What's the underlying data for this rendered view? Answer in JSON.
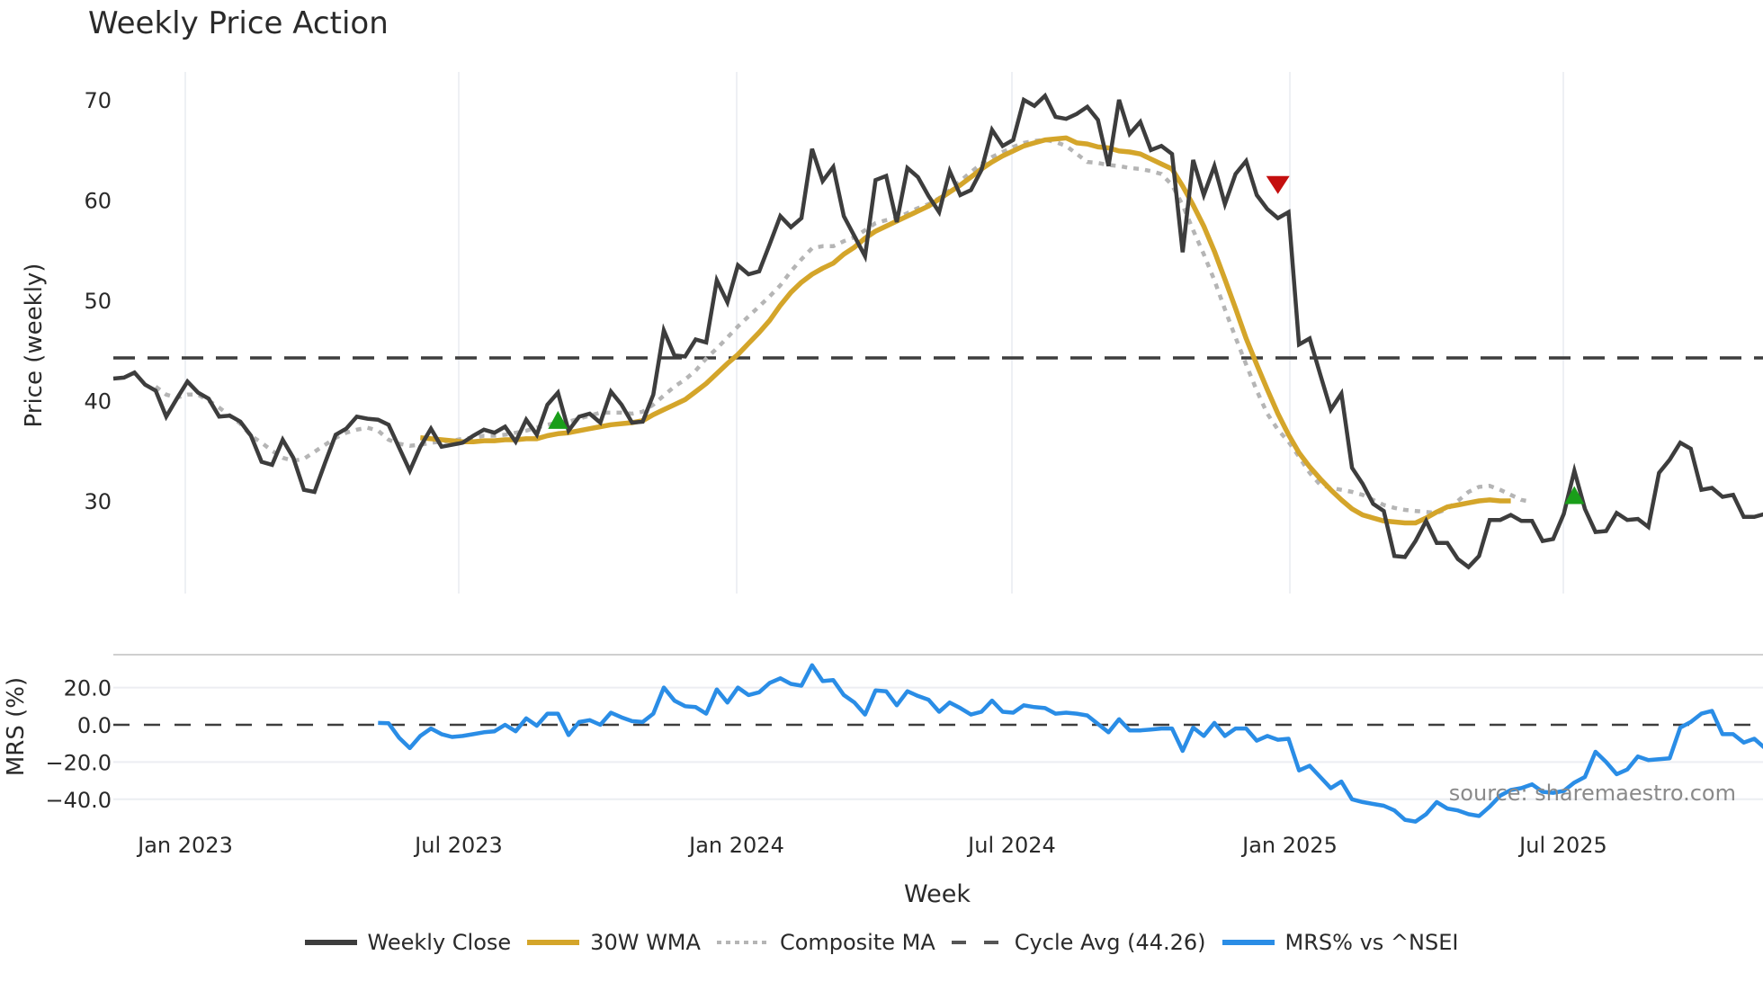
{
  "title": "Weekly Price Action",
  "source": "source: sharemaestro.com",
  "colors": {
    "weekly_close": "#3d3d3d",
    "wma30": "#d4a52a",
    "composite_ma": "#b5b5b5",
    "cycle_avg": "#3d3d3d",
    "mrs": "#2a8de6",
    "buy_signal": "#1a9e1a",
    "sell_signal": "#c40f0f"
  },
  "legend": [
    {
      "key": "weekly_close",
      "label": "Weekly Close",
      "style": "solid"
    },
    {
      "key": "wma30",
      "label": "30W WMA",
      "style": "solid"
    },
    {
      "key": "composite_ma",
      "label": "Composite MA",
      "style": "dotted"
    },
    {
      "key": "cycle_avg",
      "label": "Cycle Avg (44.26)",
      "style": "dashed"
    },
    {
      "key": "mrs",
      "label": "MRS% vs ^NSEI",
      "style": "solid"
    }
  ],
  "chart_data": [
    {
      "type": "line",
      "title": "Weekly Price Action",
      "xlabel": "Week",
      "ylabel": "Price (weekly)",
      "ylim": [
        20.5,
        73.5
      ],
      "yticks": [
        30,
        40,
        50,
        60,
        70
      ],
      "xticks": [
        "Jan 2023",
        "Jul 2023",
        "Jan 2024",
        "Jul 2024",
        "Jan 2025",
        "Jul 2025"
      ],
      "grid": true,
      "x_start": "2022-11-14",
      "x_interval": "weekly",
      "cycle_avg": 44.26,
      "series": [
        {
          "name": "Weekly Close",
          "key": "weekly_close",
          "values": [
            42.2,
            42.3,
            42.8,
            41.6,
            41.0,
            38.4,
            40.2,
            41.9,
            40.8,
            40.2,
            38.4,
            38.5,
            37.9,
            36.5,
            33.9,
            33.6,
            36.1,
            34.3,
            31.1,
            30.9,
            33.8,
            36.6,
            37.2,
            38.4,
            38.2,
            38.1,
            37.6,
            35.3,
            33.0,
            35.4,
            37.2,
            35.4,
            35.6,
            35.8,
            36.5,
            37.1,
            36.8,
            37.4,
            35.9,
            38.1,
            36.6,
            39.6,
            40.8,
            37.0,
            38.4,
            38.7,
            37.8,
            40.9,
            39.6,
            37.8,
            37.9,
            40.6,
            47.0,
            44.5,
            44.4,
            46.1,
            45.8,
            52.0,
            49.8,
            53.5,
            52.6,
            52.9,
            55.6,
            58.4,
            57.3,
            58.2,
            65.1,
            61.9,
            63.3,
            58.4,
            56.4,
            54.4,
            62.0,
            62.4,
            57.8,
            63.2,
            62.3,
            60.4,
            58.8,
            62.9,
            60.5,
            61.0,
            63.0,
            67.0,
            65.4,
            66.0,
            70.0,
            69.4,
            70.4,
            68.3,
            68.1,
            68.6,
            69.3,
            68.0,
            63.4,
            70.0,
            66.6,
            67.8,
            65.0,
            65.4,
            64.6,
            54.8,
            64.0,
            60.5,
            63.4,
            59.6,
            62.6,
            63.9,
            60.5,
            59.1,
            58.2,
            58.8,
            45.6,
            46.2,
            42.6,
            39.1,
            40.7,
            33.3,
            31.7,
            29.7,
            29.0,
            24.5,
            24.4,
            26.0,
            28.0,
            25.8,
            25.8,
            24.2,
            23.4,
            24.5,
            28.1,
            28.1,
            28.6,
            28.0,
            28.0,
            26.0,
            26.2,
            28.7,
            33.0,
            29.2,
            26.9,
            27.0,
            28.8,
            28.1,
            28.2,
            27.4,
            32.8,
            34.1,
            35.8,
            35.2,
            31.1,
            31.3,
            30.4,
            30.6,
            28.4,
            28.4,
            28.7
          ]
        },
        {
          "name": "30W WMA",
          "key": "wma30",
          "start_index": 29,
          "values": [
            36.3,
            36.2,
            36.1,
            36.0,
            35.9,
            35.9,
            36.0,
            36.0,
            36.1,
            36.1,
            36.2,
            36.2,
            36.5,
            36.7,
            36.8,
            37.0,
            37.2,
            37.4,
            37.6,
            37.7,
            37.8,
            38.0,
            38.6,
            39.1,
            39.6,
            40.1,
            40.9,
            41.7,
            42.7,
            43.7,
            44.6,
            45.7,
            46.8,
            48.0,
            49.5,
            50.8,
            51.8,
            52.6,
            53.2,
            53.7,
            54.6,
            55.3,
            56.2,
            56.9,
            57.4,
            57.9,
            58.4,
            58.9,
            59.4,
            60.1,
            60.8,
            61.5,
            62.3,
            63.1,
            63.8,
            64.4,
            64.9,
            65.4,
            65.7,
            66.0,
            66.1,
            66.2,
            65.7,
            65.6,
            65.3,
            65.2,
            64.9,
            64.8,
            64.6,
            64.1,
            63.6,
            63.1,
            61.4,
            59.5,
            57.4,
            54.9,
            52.1,
            49.2,
            46.2,
            43.6,
            41.1,
            38.7,
            36.6,
            34.8,
            33.4,
            32.2,
            31.1,
            30.1,
            29.2,
            28.6,
            28.3,
            28.0,
            27.9,
            27.8,
            27.8,
            28.3,
            28.9,
            29.4,
            29.6,
            29.8,
            30.0,
            30.1,
            30.0,
            30.0
          ]
        },
        {
          "name": "Composite MA",
          "key": "composite_ma",
          "start_index": 4,
          "values": [
            41.4,
            40.6,
            40.3,
            40.6,
            40.6,
            40.0,
            39.3,
            38.5,
            37.7,
            36.5,
            35.8,
            35.0,
            34.3,
            34.0,
            34.2,
            34.9,
            35.6,
            36.3,
            36.8,
            37.1,
            37.3,
            37.0,
            36.1,
            35.7,
            35.5,
            35.6,
            35.8,
            35.9,
            36.0,
            36.2,
            36.3,
            36.5,
            36.5,
            36.6,
            36.8,
            37.0,
            37.3,
            37.6,
            37.8,
            37.9,
            38.2,
            38.5,
            38.8,
            38.8,
            38.8,
            38.7,
            38.9,
            39.6,
            40.5,
            41.4,
            42.1,
            43.0,
            44.2,
            45.2,
            46.3,
            47.4,
            48.4,
            49.4,
            50.4,
            51.5,
            52.9,
            54.1,
            55.2,
            55.4,
            55.4,
            55.9,
            56.3,
            57.0,
            57.7,
            58.0,
            58.2,
            58.7,
            59.2,
            59.6,
            60.2,
            61.0,
            61.9,
            62.8,
            63.6,
            64.3,
            64.8,
            65.3,
            65.7,
            65.9,
            66.0,
            65.8,
            65.4,
            64.6,
            63.8,
            63.7,
            63.5,
            63.4,
            63.2,
            63.1,
            62.9,
            62.6,
            61.5,
            59.5,
            57.0,
            54.6,
            52.0,
            49.1,
            46.3,
            43.6,
            41.0,
            38.7,
            37.1,
            35.9,
            34.4,
            32.8,
            31.6,
            31.3,
            31.1,
            30.9,
            30.6,
            30.1,
            29.6,
            29.3,
            29.1,
            29.0,
            28.9,
            28.8,
            29.2,
            30.0,
            30.9,
            31.4,
            31.5,
            31.1,
            30.6,
            30.1,
            29.9
          ]
        }
      ],
      "signals": [
        {
          "type": "buy",
          "index": 42,
          "value": 37.9
        },
        {
          "type": "sell",
          "index": 110,
          "value": 61.5
        },
        {
          "type": "buy",
          "index": 138,
          "value": 30.4
        }
      ]
    },
    {
      "type": "line",
      "xlabel": "Week",
      "ylabel": "MRS (%)",
      "ylim": [
        -51,
        42
      ],
      "yticks": [
        20.0,
        0.0,
        -20.0,
        -40.0
      ],
      "ytick_labels": [
        "20.0",
        "0.0",
        "−20.0",
        "−40.0"
      ],
      "zero_line": 0,
      "series": [
        {
          "name": "MRS% vs ^NSEI",
          "key": "mrs",
          "start_index": 25,
          "values": [
            1.0,
            0.8,
            -7.0,
            -12.5,
            -6.0,
            -2.0,
            -5.0,
            -6.5,
            -6.0,
            -5.0,
            -4.0,
            -3.5,
            0.0,
            -3.5,
            3.5,
            -0.5,
            6.0,
            6.0,
            -5.5,
            1.5,
            2.5,
            0.0,
            6.5,
            4.0,
            2.0,
            1.5,
            6.0,
            20.0,
            13.0,
            10.0,
            9.5,
            6.0,
            19.0,
            12.0,
            20.0,
            16.0,
            17.5,
            22.5,
            25.0,
            22.0,
            21.0,
            32.0,
            23.5,
            24.0,
            16.0,
            12.0,
            5.5,
            18.5,
            18.0,
            10.5,
            18.0,
            15.5,
            13.5,
            7.0,
            12.0,
            9.0,
            5.5,
            7.0,
            13.0,
            7.0,
            6.5,
            10.5,
            9.5,
            9.0,
            6.0,
            6.5,
            6.0,
            5.0,
            0.5,
            -4.0,
            3.0,
            -3.0,
            -3.0,
            -2.5,
            -2.0,
            -2.0,
            -14.0,
            -1.5,
            -6.0,
            1.0,
            -6.0,
            -2.0,
            -2.0,
            -8.5,
            -6.0,
            -8.0,
            -7.5,
            -24.5,
            -22.0,
            -28.0,
            -34.0,
            -30.5,
            -40.0,
            -41.5,
            -42.5,
            -43.5,
            -46.0,
            -51.0,
            -52.0,
            -48.0,
            -41.5,
            -45.0,
            -46.0,
            -48.0,
            -49.0,
            -44.0,
            -38.0,
            -35.0,
            -34.0,
            -32.0,
            -36.0,
            -36.5,
            -35.5,
            -31.0,
            -28.0,
            -14.5,
            -20.0,
            -26.5,
            -24.0,
            -17.0,
            -19.0,
            -18.5,
            -18.0,
            -1.5,
            1.5,
            6.0,
            7.5,
            -5.0,
            -5.0,
            -9.5,
            -7.5,
            -12.5,
            -10.5,
            -9.0
          ]
        }
      ]
    }
  ],
  "axes": {
    "price": {
      "ylabel": "Price (weekly)",
      "ticks": [
        "70",
        "60",
        "50",
        "40",
        "30"
      ]
    },
    "mrs": {
      "ylabel": "MRS (%)",
      "ticks": [
        "20.0",
        "0.0",
        "−20.0",
        "−40.0"
      ]
    },
    "x": {
      "label": "Week",
      "ticks": [
        "Jan 2023",
        "Jul 2023",
        "Jan 2024",
        "Jul 2024",
        "Jan 2025",
        "Jul 2025"
      ]
    }
  }
}
